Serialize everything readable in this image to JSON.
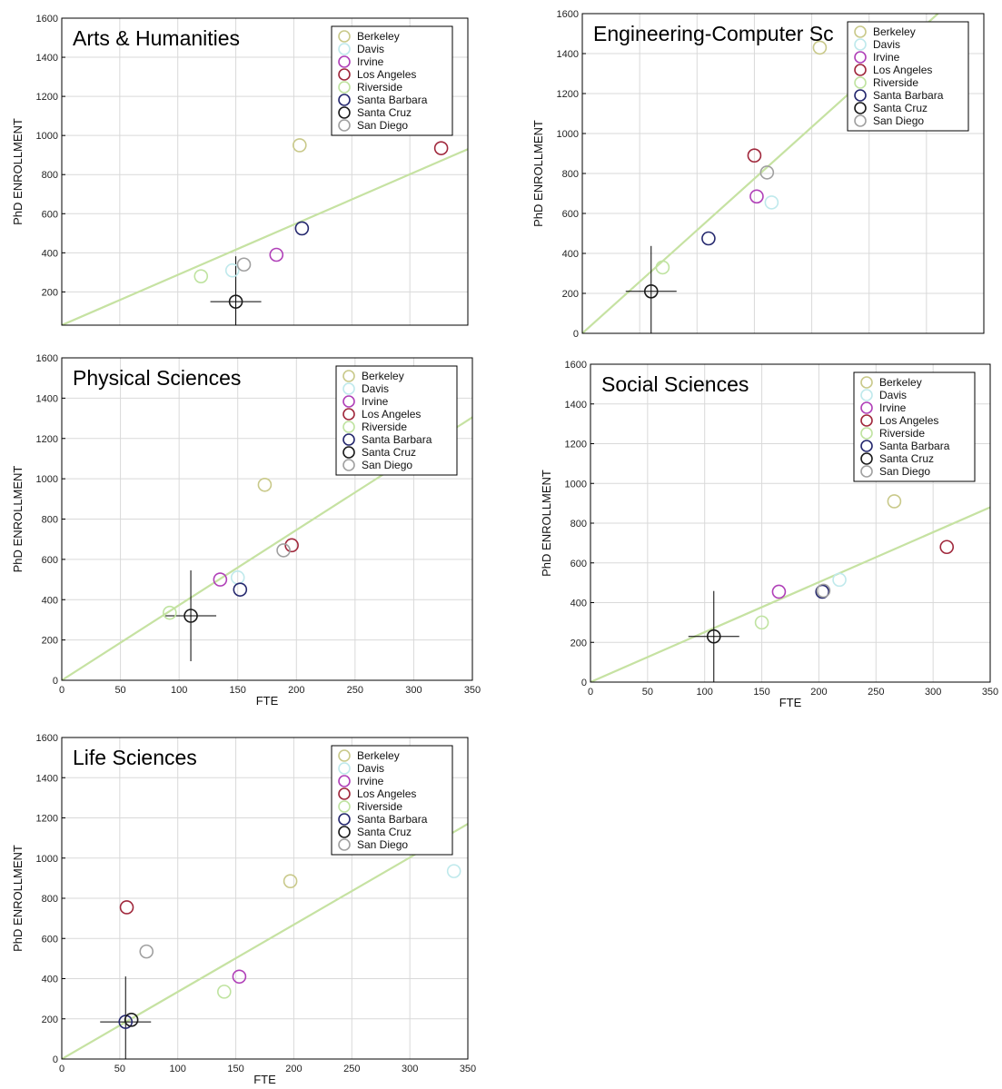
{
  "chart_data": [
    {
      "type": "scatter",
      "title": "Arts & Humanities",
      "xlabel": "",
      "ylabel": "PhD ENROLLMENT",
      "xlim": [
        0,
        350
      ],
      "ylim": [
        30,
        1600
      ],
      "xticks": [],
      "yticks": [
        "200",
        "400",
        "600",
        "800",
        "1000",
        "1200",
        "1400",
        "1600"
      ],
      "grid": true,
      "legend_position": "top-right",
      "fit_line": {
        "x": [
          0,
          350
        ],
        "y": [
          30,
          930
        ]
      },
      "center_cross": {
        "x": 150,
        "y": 150
      },
      "series": [
        {
          "name": "Berkeley",
          "x": [
            205
          ],
          "y": [
            950
          ]
        },
        {
          "name": "Davis",
          "x": [
            147
          ],
          "y": [
            310
          ]
        },
        {
          "name": "Irvine",
          "x": [
            185
          ],
          "y": [
            390
          ]
        },
        {
          "name": "Los Angeles",
          "x": [
            327
          ],
          "y": [
            935
          ]
        },
        {
          "name": "Riverside",
          "x": [
            120
          ],
          "y": [
            280
          ]
        },
        {
          "name": "Santa Barbara",
          "x": [
            207
          ],
          "y": [
            525
          ]
        },
        {
          "name": "Santa Cruz",
          "x": [
            150
          ],
          "y": [
            150
          ]
        },
        {
          "name": "San Diego",
          "x": [
            157
          ],
          "y": [
            340
          ]
        }
      ]
    },
    {
      "type": "scatter",
      "title": "Engineering-Computer Sc",
      "xlabel": "",
      "ylabel": "PhD ENROLLMENT",
      "xlim": [
        0,
        350
      ],
      "ylim": [
        0,
        1600
      ],
      "xticks": [],
      "yticks": [
        "0",
        "200",
        "400",
        "600",
        "800",
        "1000",
        "1200",
        "1400",
        "1600"
      ],
      "grid": true,
      "legend_position": "top-right",
      "fit_line": {
        "x": [
          0,
          310
        ],
        "y": [
          0,
          1600
        ]
      },
      "center_cross": {
        "x": 60,
        "y": 210
      },
      "series": [
        {
          "name": "Berkeley",
          "x": [
            207
          ],
          "y": [
            1430
          ]
        },
        {
          "name": "Davis",
          "x": [
            165
          ],
          "y": [
            655
          ]
        },
        {
          "name": "Irvine",
          "x": [
            152
          ],
          "y": [
            685
          ]
        },
        {
          "name": "Los Angeles",
          "x": [
            150
          ],
          "y": [
            890
          ]
        },
        {
          "name": "Riverside",
          "x": [
            70
          ],
          "y": [
            330
          ]
        },
        {
          "name": "Santa Barbara",
          "x": [
            110
          ],
          "y": [
            475
          ]
        },
        {
          "name": "Santa Cruz",
          "x": [
            60
          ],
          "y": [
            210
          ]
        },
        {
          "name": "San Diego",
          "x": [
            161
          ],
          "y": [
            805
          ]
        }
      ]
    },
    {
      "type": "scatter",
      "title": "Physical Sciences",
      "xlabel": "FTE",
      "ylabel": "PhD ENROLLMENT",
      "xlim": [
        0,
        350
      ],
      "ylim": [
        0,
        1600
      ],
      "xticks": [
        "0",
        "50",
        "100",
        "150",
        "200",
        "250",
        "300",
        "350"
      ],
      "yticks": [
        "0",
        "200",
        "400",
        "600",
        "800",
        "1000",
        "1200",
        "1400",
        "1600"
      ],
      "grid": true,
      "legend_position": "top-right",
      "fit_line": {
        "x": [
          0,
          350
        ],
        "y": [
          0,
          1305
        ]
      },
      "center_cross": {
        "x": 110,
        "y": 320
      },
      "series": [
        {
          "name": "Berkeley",
          "x": [
            173
          ],
          "y": [
            970
          ]
        },
        {
          "name": "Davis",
          "x": [
            150
          ],
          "y": [
            510
          ]
        },
        {
          "name": "Irvine",
          "x": [
            135
          ],
          "y": [
            500
          ]
        },
        {
          "name": "Los Angeles",
          "x": [
            196
          ],
          "y": [
            670
          ]
        },
        {
          "name": "Riverside",
          "x": [
            92
          ],
          "y": [
            335
          ]
        },
        {
          "name": "Santa Barbara",
          "x": [
            152
          ],
          "y": [
            450
          ]
        },
        {
          "name": "Santa Cruz",
          "x": [
            110
          ],
          "y": [
            320
          ]
        },
        {
          "name": "San Diego",
          "x": [
            189
          ],
          "y": [
            645
          ]
        }
      ]
    },
    {
      "type": "scatter",
      "title": "Social Sciences",
      "xlabel": "FTE",
      "ylabel": "PhD ENROLLMENT",
      "xlim": [
        0,
        350
      ],
      "ylim": [
        0,
        1600
      ],
      "xticks": [
        "0",
        "50",
        "100",
        "150",
        "200",
        "250",
        "300",
        "350"
      ],
      "yticks": [
        "0",
        "200",
        "400",
        "600",
        "800",
        "1000",
        "1200",
        "1400",
        "1600"
      ],
      "grid": true,
      "legend_position": "top-right",
      "fit_line": {
        "x": [
          0,
          350
        ],
        "y": [
          0,
          880
        ]
      },
      "center_cross": {
        "x": 108,
        "y": 230
      },
      "series": [
        {
          "name": "Berkeley",
          "x": [
            266
          ],
          "y": [
            910
          ]
        },
        {
          "name": "Davis",
          "x": [
            218
          ],
          "y": [
            515
          ]
        },
        {
          "name": "Irvine",
          "x": [
            165
          ],
          "y": [
            455
          ]
        },
        {
          "name": "Los Angeles",
          "x": [
            312
          ],
          "y": [
            680
          ]
        },
        {
          "name": "Riverside",
          "x": [
            150
          ],
          "y": [
            300
          ]
        },
        {
          "name": "Santa Barbara",
          "x": [
            203
          ],
          "y": [
            455
          ]
        },
        {
          "name": "Santa Cruz",
          "x": [
            108
          ],
          "y": [
            230
          ]
        },
        {
          "name": "San Diego",
          "x": [
            204
          ],
          "y": [
            460
          ]
        }
      ]
    },
    {
      "type": "scatter",
      "title": "Life Sciences",
      "xlabel": "FTE",
      "ylabel": "PhD ENROLLMENT",
      "xlim": [
        0,
        350
      ],
      "ylim": [
        0,
        1600
      ],
      "xticks": [
        "0",
        "50",
        "100",
        "150",
        "200",
        "250",
        "300",
        "350"
      ],
      "yticks": [
        "0",
        "200",
        "400",
        "600",
        "800",
        "1000",
        "1200",
        "1400",
        "1600"
      ],
      "grid": true,
      "legend_position": "top-right",
      "fit_line": {
        "x": [
          0,
          350
        ],
        "y": [
          0,
          1170
        ]
      },
      "center_cross": {
        "x": 55,
        "y": 185
      },
      "series": [
        {
          "name": "Berkeley",
          "x": [
            197
          ],
          "y": [
            885
          ]
        },
        {
          "name": "Davis",
          "x": [
            338
          ],
          "y": [
            935
          ]
        },
        {
          "name": "Irvine",
          "x": [
            153
          ],
          "y": [
            410
          ]
        },
        {
          "name": "Los Angeles",
          "x": [
            56
          ],
          "y": [
            755
          ]
        },
        {
          "name": "Riverside",
          "x": [
            140
          ],
          "y": [
            335
          ]
        },
        {
          "name": "Santa Barbara",
          "x": [
            55
          ],
          "y": [
            185
          ]
        },
        {
          "name": "Santa Cruz",
          "x": [
            60
          ],
          "y": [
            195
          ]
        },
        {
          "name": "San Diego",
          "x": [
            73
          ],
          "y": [
            535
          ]
        }
      ]
    }
  ],
  "series_colors": {
    "Berkeley": "#c9c98a",
    "Davis": "#bfe9ec",
    "Irvine": "#b040b8",
    "Los Angeles": "#a0283c",
    "Riverside": "#bfe3a0",
    "Santa Barbara": "#25286e",
    "Santa Cruz": "#1a1a1a",
    "San Diego": "#a0a0a0"
  },
  "fit_line_color": "#c6e2a2",
  "center_marker_color": "#000000"
}
